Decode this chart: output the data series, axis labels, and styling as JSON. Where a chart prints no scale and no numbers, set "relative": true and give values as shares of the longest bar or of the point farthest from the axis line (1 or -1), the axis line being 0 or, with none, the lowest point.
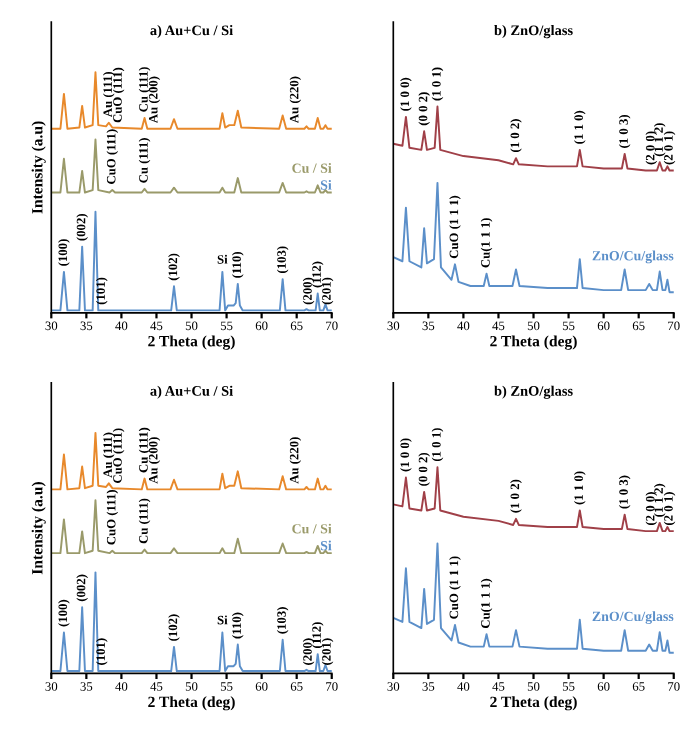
{
  "chart_data": [
    {
      "type": "line",
      "relative": true,
      "title": "a) Au+Cu / Si",
      "xlabel": "2 Theta (deg)",
      "ylabel": "Intensity (a.u)",
      "xlim": [
        30,
        70
      ],
      "xticks": [
        30,
        35,
        40,
        45,
        50,
        55,
        60,
        65,
        70
      ],
      "tick_labels": "x",
      "series": [
        {
          "color": "#e8892b",
          "x": [
            30,
            31.3,
            31.8,
            32.3,
            34,
            34.4,
            34.8,
            35.9,
            36.3,
            36.7,
            37.8,
            38.2,
            38.7,
            42.9,
            43.3,
            43.7,
            47,
            47.5,
            48,
            54,
            54.4,
            54.8,
            55.4,
            56.1,
            56.6,
            57.1,
            62.5,
            63,
            63.5,
            66.1,
            66.4,
            66.7,
            67.6,
            68,
            68.4,
            68.8,
            69.1,
            69.4,
            70
          ],
          "values": [
            0.765,
            0.765,
            0.91,
            0.765,
            0.77,
            0.86,
            0.77,
            0.78,
            1.0,
            0.78,
            0.775,
            0.79,
            0.77,
            0.765,
            0.81,
            0.765,
            0.765,
            0.805,
            0.765,
            0.765,
            0.83,
            0.77,
            0.78,
            0.78,
            0.84,
            0.77,
            0.765,
            0.82,
            0.765,
            0.765,
            0.775,
            0.765,
            0.765,
            0.81,
            0.765,
            0.765,
            0.78,
            0.765,
            0.765
          ]
        },
        {
          "name": "Cu / Si",
          "color": "#9a9a6a",
          "x": [
            30,
            31.3,
            31.8,
            32.3,
            34,
            34.4,
            34.8,
            35.9,
            36.3,
            36.7,
            38.3,
            38.7,
            39.1,
            42.9,
            43.3,
            43.7,
            47,
            47.5,
            48,
            54,
            54.4,
            54.8,
            56.1,
            56.6,
            57.1,
            62.5,
            63,
            63.5,
            66.1,
            66.4,
            66.7,
            67.6,
            68,
            68.4,
            68.8,
            69.1,
            69.4,
            70
          ],
          "values": [
            0.5,
            0.5,
            0.64,
            0.5,
            0.5,
            0.59,
            0.5,
            0.51,
            0.72,
            0.51,
            0.5,
            0.51,
            0.5,
            0.5,
            0.515,
            0.5,
            0.5,
            0.52,
            0.5,
            0.5,
            0.52,
            0.5,
            0.5,
            0.56,
            0.5,
            0.5,
            0.54,
            0.5,
            0.5,
            0.505,
            0.5,
            0.5,
            0.53,
            0.5,
            0.5,
            0.51,
            0.5,
            0.5
          ]
        },
        {
          "name": "Si",
          "color": "#5b8fc9",
          "x": [
            30,
            31.3,
            31.8,
            32.3,
            34,
            34.4,
            34.8,
            35.9,
            36.3,
            36.7,
            40,
            47.1,
            47.5,
            47.9,
            54,
            54.4,
            54.8,
            55.2,
            56,
            56.3,
            56.6,
            56.9,
            57.3,
            62.6,
            63,
            63.4,
            66.1,
            66.4,
            66.7,
            67.7,
            68,
            68.3,
            68.8,
            69.1,
            69.4,
            70
          ],
          "values": [
            0.01,
            0.01,
            0.17,
            0.01,
            0.01,
            0.275,
            0.01,
            0.01,
            0.42,
            0.01,
            0.01,
            0.01,
            0.11,
            0.01,
            0.01,
            0.17,
            0.01,
            0.03,
            0.03,
            0.04,
            0.12,
            0.03,
            0.01,
            0.01,
            0.14,
            0.01,
            0.01,
            0.015,
            0.01,
            0.01,
            0.08,
            0.01,
            0.01,
            0.035,
            0.01,
            0.01
          ]
        }
      ],
      "annotations": [
        {
          "text": "(100)",
          "x": 31.8,
          "y": 0.17
        },
        {
          "text": "(002)",
          "x": 34.4,
          "y": 0.275
        },
        {
          "text": "(101)",
          "x": 37.2,
          "y": 0.01
        },
        {
          "text": "(102)",
          "x": 47.5,
          "y": 0.11
        },
        {
          "text": "Si",
          "x": 54.4,
          "y": 0.17
        },
        {
          "text": "(110)",
          "x": 56.6,
          "y": 0.12
        },
        {
          "text": "(103)",
          "x": 63,
          "y": 0.14
        },
        {
          "text": "(200)",
          "x": 66.7,
          "y": 0.01
        },
        {
          "text": "(112)",
          "x": 68,
          "y": 0.08
        },
        {
          "text": "(201)",
          "x": 69.4,
          "y": 0.01
        },
        {
          "text": "CuO (111)",
          "x": 38.7,
          "y": 0.51
        },
        {
          "text": "Cu (111)",
          "x": 43.3,
          "y": 0.515
        },
        {
          "text": "Au (111)",
          "x": 38.2,
          "y": 0.79
        },
        {
          "text": "CuO (111)",
          "x": 39.6,
          "y": 0.766
        },
        {
          "text": "Cu (111)",
          "x": 43.3,
          "y": 0.81
        },
        {
          "text": "Au (200)",
          "x": 44.7,
          "y": 0.765
        },
        {
          "text": "Au (220)",
          "x": 64.8,
          "y": 0.765
        }
      ]
    },
    {
      "type": "line",
      "relative": true,
      "title": "b) ZnO/glass",
      "xlabel": "2 Theta (deg)",
      "xlim": [
        30,
        70
      ],
      "xticks": [
        30,
        35,
        40,
        45,
        50,
        55,
        60,
        65,
        70
      ],
      "tick_labels": "x",
      "series": [
        {
          "color": "#a04048",
          "x": [
            30,
            31.3,
            31.8,
            32.3,
            34,
            34.4,
            34.8,
            35.9,
            36.3,
            36.7,
            40,
            45,
            47.1,
            47.5,
            47.9,
            52,
            56.2,
            56.6,
            57,
            60,
            62.6,
            63,
            63.4,
            66,
            67.6,
            68,
            68.4,
            68.8,
            69.1,
            69.4,
            70
          ],
          "values": [
            0.82,
            0.81,
            0.95,
            0.8,
            0.79,
            0.88,
            0.79,
            0.8,
            1.0,
            0.79,
            0.76,
            0.74,
            0.72,
            0.75,
            0.72,
            0.71,
            0.71,
            0.79,
            0.71,
            0.7,
            0.7,
            0.77,
            0.7,
            0.69,
            0.69,
            0.73,
            0.69,
            0.69,
            0.71,
            0.69,
            0.69
          ]
        },
        {
          "name": "ZnO/Cu/glass",
          "color": "#5b8fc9",
          "x": [
            30,
            31.3,
            31.8,
            32.3,
            34,
            34.4,
            34.8,
            35.8,
            36.3,
            36.8,
            38.3,
            38.8,
            39.3,
            41,
            42.9,
            43.3,
            43.7,
            47,
            47.5,
            48,
            52,
            56.2,
            56.6,
            57,
            60,
            62.5,
            63,
            63.5,
            66,
            66.5,
            67,
            67.6,
            68,
            68.4,
            68.8,
            69.1,
            69.4,
            70
          ],
          "values": [
            0.27,
            0.25,
            0.51,
            0.25,
            0.22,
            0.41,
            0.24,
            0.26,
            0.63,
            0.22,
            0.16,
            0.235,
            0.15,
            0.13,
            0.13,
            0.19,
            0.13,
            0.13,
            0.21,
            0.13,
            0.12,
            0.12,
            0.26,
            0.12,
            0.11,
            0.11,
            0.21,
            0.11,
            0.11,
            0.14,
            0.11,
            0.11,
            0.2,
            0.11,
            0.11,
            0.16,
            0.1,
            0.1
          ]
        }
      ],
      "annotations": [
        {
          "text": "(1 0 0)",
          "x": 31.8,
          "y": 0.95
        },
        {
          "text": "(0 0 2)",
          "x": 34.4,
          "y": 0.88
        },
        {
          "text": "(1 0 1)",
          "x": 36.3,
          "y": 1.0
        },
        {
          "text": "(1 0 2)",
          "x": 47.5,
          "y": 0.75
        },
        {
          "text": "(1 1 0)",
          "x": 56.6,
          "y": 0.79
        },
        {
          "text": "(1 0 3)",
          "x": 63,
          "y": 0.77
        },
        {
          "text": "(2 0 0)",
          "x": 66.8,
          "y": 0.69
        },
        {
          "text": "(1 1 2)",
          "x": 68,
          "y": 0.73
        },
        {
          "text": "(2 0 1)",
          "x": 69.4,
          "y": 0.69
        },
        {
          "text": "CuO (1 1 1)",
          "x": 38.8,
          "y": 0.235
        },
        {
          "text": "Cu(1 1 1)",
          "x": 43.3,
          "y": 0.19
        }
      ]
    },
    {
      "type": "line",
      "relative": true,
      "title": "a) Au+Cu / Si",
      "xlabel": "2 Theta (deg)",
      "ylabel": "Intensity (a.u)",
      "xlim": [
        30,
        70
      ],
      "xticks": [
        30,
        35,
        40,
        45,
        50,
        55,
        60,
        65,
        70
      ],
      "tick_labels": "x",
      "series": [
        {
          "color": "#e8892b",
          "x": [
            30,
            31.3,
            31.8,
            32.3,
            34,
            34.4,
            34.8,
            35.9,
            36.3,
            36.7,
            37.8,
            38.2,
            38.7,
            42.9,
            43.3,
            43.7,
            47,
            47.5,
            48,
            54,
            54.4,
            54.8,
            55.4,
            56.1,
            56.6,
            57.1,
            62.5,
            63,
            63.5,
            66.1,
            66.4,
            66.7,
            67.6,
            68,
            68.4,
            68.8,
            69.1,
            69.4,
            70
          ],
          "values": [
            0.765,
            0.765,
            0.91,
            0.765,
            0.77,
            0.86,
            0.77,
            0.78,
            1.0,
            0.78,
            0.775,
            0.79,
            0.77,
            0.765,
            0.81,
            0.765,
            0.765,
            0.805,
            0.765,
            0.765,
            0.83,
            0.77,
            0.78,
            0.78,
            0.84,
            0.77,
            0.765,
            0.82,
            0.765,
            0.765,
            0.775,
            0.765,
            0.765,
            0.81,
            0.765,
            0.765,
            0.78,
            0.765,
            0.765
          ]
        },
        {
          "name": "Cu / Si",
          "color": "#9a9a6a",
          "x": [
            30,
            31.3,
            31.8,
            32.3,
            34,
            34.4,
            34.8,
            35.9,
            36.3,
            36.7,
            38.3,
            38.7,
            39.1,
            42.9,
            43.3,
            43.7,
            47,
            47.5,
            48,
            54,
            54.4,
            54.8,
            56.1,
            56.6,
            57.1,
            62.5,
            63,
            63.5,
            66.1,
            66.4,
            66.7,
            67.6,
            68,
            68.4,
            68.8,
            69.1,
            69.4,
            70
          ],
          "values": [
            0.5,
            0.5,
            0.64,
            0.5,
            0.5,
            0.59,
            0.5,
            0.51,
            0.72,
            0.51,
            0.5,
            0.51,
            0.5,
            0.5,
            0.515,
            0.5,
            0.5,
            0.52,
            0.5,
            0.5,
            0.52,
            0.5,
            0.5,
            0.56,
            0.5,
            0.5,
            0.54,
            0.5,
            0.5,
            0.505,
            0.5,
            0.5,
            0.53,
            0.5,
            0.5,
            0.51,
            0.5,
            0.5
          ]
        },
        {
          "name": "Si",
          "color": "#5b8fc9",
          "x": [
            30,
            31.3,
            31.8,
            32.3,
            34,
            34.4,
            34.8,
            35.9,
            36.3,
            36.7,
            40,
            47.1,
            47.5,
            47.9,
            54,
            54.4,
            54.8,
            55.2,
            56,
            56.3,
            56.6,
            56.9,
            57.3,
            62.6,
            63,
            63.4,
            66.1,
            66.4,
            66.7,
            67.7,
            68,
            68.3,
            68.8,
            69.1,
            69.4,
            70
          ],
          "values": [
            0.01,
            0.01,
            0.17,
            0.01,
            0.01,
            0.275,
            0.01,
            0.01,
            0.42,
            0.01,
            0.01,
            0.01,
            0.11,
            0.01,
            0.01,
            0.17,
            0.01,
            0.03,
            0.03,
            0.04,
            0.12,
            0.03,
            0.01,
            0.01,
            0.14,
            0.01,
            0.01,
            0.015,
            0.01,
            0.01,
            0.08,
            0.01,
            0.01,
            0.035,
            0.01,
            0.01
          ]
        }
      ],
      "annotations": [
        {
          "text": "(100)",
          "x": 31.8,
          "y": 0.17
        },
        {
          "text": "(002)",
          "x": 34.4,
          "y": 0.275
        },
        {
          "text": "(101)",
          "x": 37.2,
          "y": 0.01
        },
        {
          "text": "(102)",
          "x": 47.5,
          "y": 0.11
        },
        {
          "text": "Si",
          "x": 54.4,
          "y": 0.17
        },
        {
          "text": "(110)",
          "x": 56.6,
          "y": 0.12
        },
        {
          "text": "(103)",
          "x": 63,
          "y": 0.14
        },
        {
          "text": "(200)",
          "x": 66.7,
          "y": 0.01
        },
        {
          "text": "(112)",
          "x": 68,
          "y": 0.08
        },
        {
          "text": "(201)",
          "x": 69.4,
          "y": 0.01
        },
        {
          "text": "CuO (111)",
          "x": 38.7,
          "y": 0.51
        },
        {
          "text": "Cu (111)",
          "x": 43.3,
          "y": 0.515
        },
        {
          "text": "Au (111)",
          "x": 38.2,
          "y": 0.79
        },
        {
          "text": "CuO (111)",
          "x": 39.6,
          "y": 0.766
        },
        {
          "text": "Cu (111)",
          "x": 43.3,
          "y": 0.81
        },
        {
          "text": "Au (200)",
          "x": 44.7,
          "y": 0.765
        },
        {
          "text": "Au (220)",
          "x": 64.8,
          "y": 0.765
        }
      ]
    },
    {
      "type": "line",
      "relative": true,
      "title": "b) ZnO/glass",
      "xlabel": "2 Theta (deg)",
      "xlim": [
        30,
        70
      ],
      "xticks": [
        30,
        35,
        40,
        45,
        50,
        55,
        60,
        65,
        70
      ],
      "tick_labels": "x",
      "series": [
        {
          "color": "#a04048",
          "x": [
            30,
            31.3,
            31.8,
            32.3,
            34,
            34.4,
            34.8,
            35.9,
            36.3,
            36.7,
            40,
            45,
            47.1,
            47.5,
            47.9,
            52,
            56.2,
            56.6,
            57,
            60,
            62.6,
            63,
            63.4,
            66,
            67.6,
            68,
            68.4,
            68.8,
            69.1,
            69.4,
            70
          ],
          "values": [
            0.82,
            0.81,
            0.95,
            0.8,
            0.79,
            0.88,
            0.79,
            0.8,
            1.0,
            0.79,
            0.76,
            0.74,
            0.72,
            0.75,
            0.72,
            0.71,
            0.71,
            0.79,
            0.71,
            0.7,
            0.7,
            0.77,
            0.7,
            0.69,
            0.69,
            0.73,
            0.69,
            0.69,
            0.71,
            0.69,
            0.69
          ]
        },
        {
          "name": "ZnO/Cu/glass",
          "color": "#5b8fc9",
          "x": [
            30,
            31.3,
            31.8,
            32.3,
            34,
            34.4,
            34.8,
            35.8,
            36.3,
            36.8,
            38.3,
            38.8,
            39.3,
            41,
            42.9,
            43.3,
            43.7,
            47,
            47.5,
            48,
            52,
            56.2,
            56.6,
            57,
            60,
            62.5,
            63,
            63.5,
            66,
            66.5,
            67,
            67.6,
            68,
            68.4,
            68.8,
            69.1,
            69.4,
            70
          ],
          "values": [
            0.27,
            0.25,
            0.51,
            0.25,
            0.22,
            0.41,
            0.24,
            0.26,
            0.63,
            0.22,
            0.16,
            0.235,
            0.15,
            0.13,
            0.13,
            0.19,
            0.13,
            0.13,
            0.21,
            0.13,
            0.12,
            0.12,
            0.26,
            0.12,
            0.11,
            0.11,
            0.21,
            0.11,
            0.11,
            0.14,
            0.11,
            0.11,
            0.2,
            0.11,
            0.11,
            0.16,
            0.1,
            0.1
          ]
        }
      ],
      "annotations": [
        {
          "text": "(1 0 0)",
          "x": 31.8,
          "y": 0.95
        },
        {
          "text": "(0 0 2)",
          "x": 34.4,
          "y": 0.88
        },
        {
          "text": "(1 0 1)",
          "x": 36.3,
          "y": 1.0
        },
        {
          "text": "(1 0 2)",
          "x": 47.5,
          "y": 0.75
        },
        {
          "text": "(1 1 0)",
          "x": 56.6,
          "y": 0.79
        },
        {
          "text": "(1 0 3)",
          "x": 63,
          "y": 0.77
        },
        {
          "text": "(2 0 0)",
          "x": 66.8,
          "y": 0.69
        },
        {
          "text": "(1 1 2)",
          "x": 68,
          "y": 0.73
        },
        {
          "text": "(2 0 1)",
          "x": 69.4,
          "y": 0.69
        },
        {
          "text": "CuO (1 1 1)",
          "x": 38.8,
          "y": 0.235
        },
        {
          "text": "Cu(1 1 1)",
          "x": 43.3,
          "y": 0.19
        }
      ]
    }
  ]
}
